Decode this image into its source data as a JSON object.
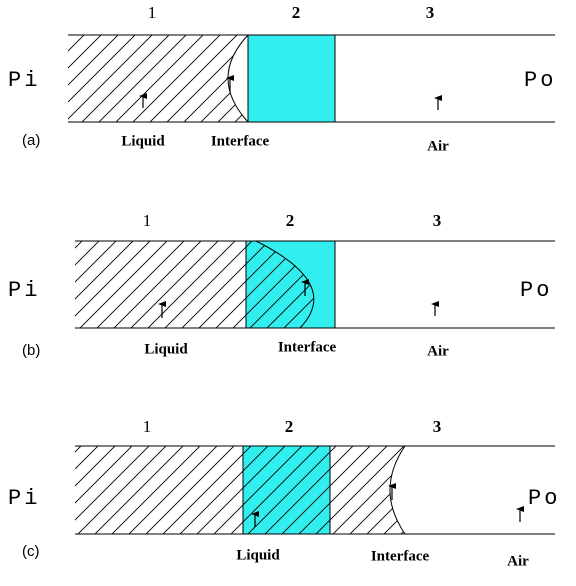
{
  "panels": [
    {
      "tag": "(a)",
      "regions": [
        "1",
        "2",
        "3"
      ],
      "inlet": "Pi",
      "outlet": "Po",
      "labels": [
        "Liquid",
        "Interface",
        "Air"
      ]
    },
    {
      "tag": "(b)",
      "regions": [
        "1",
        "2",
        "3"
      ],
      "inlet": "Pi",
      "outlet": "Po",
      "labels": [
        "Liquid",
        "Interface",
        "Air"
      ]
    },
    {
      "tag": "(c)",
      "regions": [
        "1",
        "2",
        "3"
      ],
      "inlet": "Pi",
      "outlet": "Po",
      "labels": [
        "Liquid",
        "Interface",
        "Air"
      ]
    }
  ]
}
